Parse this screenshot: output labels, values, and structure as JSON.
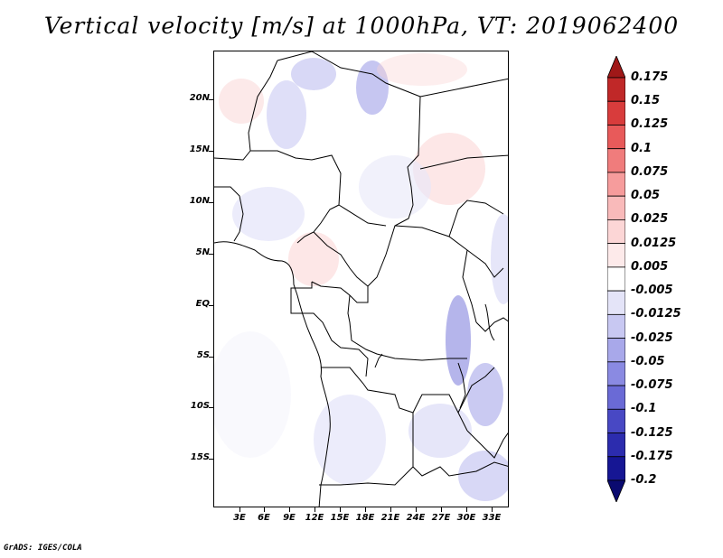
{
  "title": "Vertical velocity [m/s] at 1000hPa, VT: 2019062400",
  "credit": "GrADS: IGES/COLA",
  "map": {
    "lat_labels": [
      "20N",
      "15N",
      "10N",
      "5N",
      "EQ",
      "5S",
      "10S",
      "15S"
    ],
    "lon_labels": [
      "3E",
      "6E",
      "9E",
      "12E",
      "15E",
      "18E",
      "21E",
      "24E",
      "27E",
      "30E",
      "33E"
    ]
  },
  "colorbar": {
    "labels": [
      "0.175",
      "0.15",
      "0.125",
      "0.1",
      "0.075",
      "0.05",
      "0.025",
      "0.0125",
      "0.005",
      "-0.005",
      "-0.0125",
      "-0.025",
      "-0.05",
      "-0.075",
      "-0.1",
      "-0.125",
      "-0.175",
      "-0.2"
    ],
    "colors": [
      "#a01818",
      "#c02828",
      "#d83c3c",
      "#e85a5a",
      "#f07c7c",
      "#f69c9c",
      "#f9baba",
      "#fcd6d6",
      "#fdeaea",
      "#ffffff",
      "#e4e4f8",
      "#c8c8f2",
      "#a8a8ea",
      "#8a8ae2",
      "#6a6ad6",
      "#4848c4",
      "#2c2cae",
      "#161694",
      "#0a0a70"
    ]
  }
}
